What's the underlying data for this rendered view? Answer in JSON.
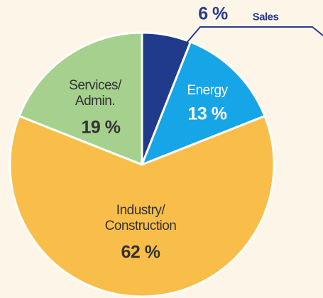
{
  "chart_data": {
    "type": "pie",
    "categories": [
      "Sales",
      "Energy",
      "Industry/\nConstruction",
      "Services/\nAdmin."
    ],
    "values": [
      6,
      13,
      62,
      19
    ],
    "value_labels": [
      "6 %",
      "13 %",
      "62 %",
      "19 %"
    ],
    "colors": [
      "#203a8c",
      "#16a5e6",
      "#f9be4a",
      "#a5d08e"
    ]
  }
}
